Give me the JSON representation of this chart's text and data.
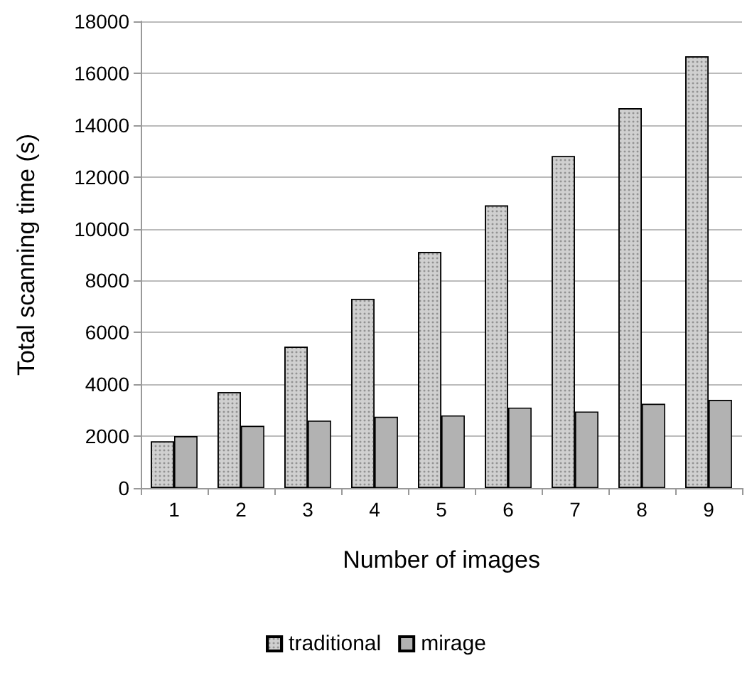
{
  "chart_data": {
    "type": "bar",
    "xlabel": "Number of images",
    "ylabel": "Total scanning time (s)",
    "categories": [
      "1",
      "2",
      "3",
      "4",
      "5",
      "6",
      "7",
      "8",
      "9"
    ],
    "series": [
      {
        "name": "traditional",
        "color": "#d0d0d0",
        "values": [
          1800,
          3700,
          5450,
          7300,
          9100,
          10900,
          12800,
          14650,
          16650
        ]
      },
      {
        "name": "mirage",
        "color": "#b2b2b2",
        "values": [
          2000,
          2400,
          2600,
          2750,
          2800,
          3100,
          2950,
          3250,
          3400
        ]
      }
    ],
    "ylim": [
      0,
      18000
    ],
    "yticks": [
      0,
      2000,
      4000,
      6000,
      8000,
      10000,
      12000,
      14000,
      16000,
      18000
    ],
    "grid": "y",
    "legend": "bottom"
  }
}
